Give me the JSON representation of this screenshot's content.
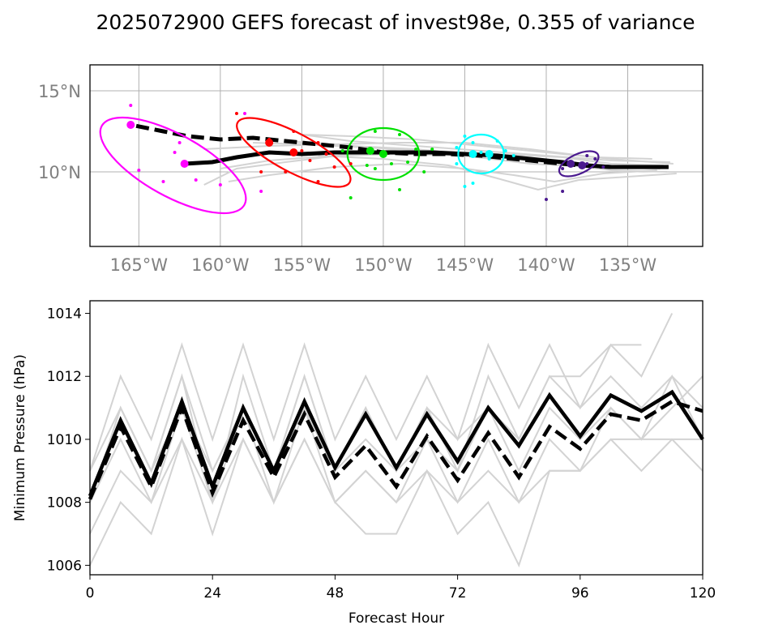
{
  "figure": {
    "title": "2025072900 GEFS forecast of invest98e, 0.355 of variance"
  },
  "colors": {
    "ensemble": "#d3d3d3",
    "mean": "#000000",
    "grid": "#b0b0b0",
    "ellipses": [
      "#ff00ff",
      "#ff0000",
      "#00e000",
      "#00ffff",
      "#4b1a8f"
    ]
  },
  "chart_data": [
    {
      "type": "scatter",
      "panel": "track-map",
      "title": "",
      "xlabel": "",
      "ylabel": "",
      "x_ticks": [
        -165,
        -160,
        -155,
        -150,
        -145,
        -140,
        -135
      ],
      "x_tick_labels": [
        "165°W",
        "160°W",
        "155°W",
        "150°W",
        "145°W",
        "140°W",
        "135°W"
      ],
      "y_ticks": [
        10,
        15
      ],
      "y_tick_labels": [
        "10°N",
        "15°N"
      ],
      "xlim": [
        -168,
        -130.4
      ],
      "ylim": [
        5.4,
        16.6
      ],
      "grid": true,
      "series": [
        {
          "style": "solid-mean",
          "points": [
            [
              -132.5,
              10.3
            ],
            [
              -134,
              10.3
            ],
            [
              -136,
              10.3
            ],
            [
              -137.5,
              10.4
            ],
            [
              -139,
              10.6
            ],
            [
              -141,
              10.8
            ],
            [
              -143,
              11.0
            ],
            [
              -145,
              11.1
            ],
            [
              -147,
              11.2
            ],
            [
              -149,
              11.2
            ],
            [
              -151,
              11.2
            ],
            [
              -153,
              11.2
            ],
            [
              -155,
              11.1
            ],
            [
              -157,
              11.2
            ],
            [
              -159,
              10.9
            ],
            [
              -160.5,
              10.6
            ],
            [
              -162.2,
              10.5
            ]
          ]
        },
        {
          "style": "dashed-mean",
          "points": [
            [
              -132.5,
              10.3
            ],
            [
              -134,
              10.3
            ],
            [
              -136,
              10.3
            ],
            [
              -138,
              10.4
            ],
            [
              -140,
              10.6
            ],
            [
              -142,
              10.8
            ],
            [
              -144,
              11.0
            ],
            [
              -146,
              11.1
            ],
            [
              -148,
              11.1
            ],
            [
              -150,
              11.2
            ],
            [
              -152,
              11.5
            ],
            [
              -154,
              11.7
            ],
            [
              -156,
              11.9
            ],
            [
              -158,
              12.1
            ],
            [
              -160,
              12.0
            ],
            [
              -162,
              12.2
            ],
            [
              -163.5,
              12.5
            ],
            [
              -165.5,
              12.9
            ]
          ]
        },
        {
          "style": "ensemble",
          "points": [
            [
              -132.6,
              10.0
            ],
            [
              -136,
              10.1
            ],
            [
              -140,
              10.6
            ],
            [
              -144,
              11.0
            ],
            [
              -148,
              11.4
            ],
            [
              -152,
              11.6
            ],
            [
              -156,
              11.9
            ]
          ]
        },
        {
          "style": "ensemble",
          "points": [
            [
              -132.4,
              10.6
            ],
            [
              -136,
              10.7
            ],
            [
              -140,
              11.0
            ],
            [
              -144,
              11.3
            ],
            [
              -148,
              11.6
            ],
            [
              -152,
              11.9
            ],
            [
              -155,
              12.3
            ]
          ]
        },
        {
          "style": "ensemble",
          "points": [
            [
              -133,
              10.2
            ],
            [
              -137,
              10.3
            ],
            [
              -141,
              10.5
            ],
            [
              -145,
              11.0
            ],
            [
              -149,
              11.1
            ],
            [
              -153,
              11.0
            ],
            [
              -157,
              10.7
            ],
            [
              -160,
              10.2
            ]
          ]
        },
        {
          "style": "ensemble",
          "points": [
            [
              -132,
              9.9
            ],
            [
              -135,
              9.7
            ],
            [
              -138,
              9.5
            ],
            [
              -140.5,
              8.9
            ],
            [
              -143,
              9.6
            ],
            [
              -146,
              10.4
            ],
            [
              -150,
              10.8
            ],
            [
              -154,
              11.0
            ]
          ]
        },
        {
          "style": "ensemble",
          "points": [
            [
              -133.5,
              10.8
            ],
            [
              -137,
              10.9
            ],
            [
              -141,
              11.4
            ],
            [
              -145,
              11.8
            ],
            [
              -149,
              11.8
            ],
            [
              -153,
              11.7
            ],
            [
              -157,
              11.6
            ],
            [
              -161,
              11.4
            ]
          ]
        },
        {
          "style": "ensemble",
          "points": [
            [
              -132.8,
              10.4
            ],
            [
              -136,
              10.5
            ],
            [
              -139,
              10.9
            ],
            [
              -143,
              11.1
            ],
            [
              -147,
              11.3
            ],
            [
              -151,
              11.5
            ],
            [
              -155,
              11.7
            ],
            [
              -158,
              11.8
            ]
          ]
        },
        {
          "style": "ensemble",
          "points": [
            [
              -133.2,
              10.1
            ],
            [
              -136.5,
              9.9
            ],
            [
              -139.5,
              9.4
            ],
            [
              -142,
              9.8
            ],
            [
              -145,
              10.2
            ],
            [
              -149,
              10.5
            ],
            [
              -153,
              10.3
            ],
            [
              -157,
              9.8
            ],
            [
              -159.5,
              9.4
            ]
          ]
        },
        {
          "style": "ensemble",
          "points": [
            [
              -132.2,
              10.5
            ],
            [
              -136,
              10.8
            ],
            [
              -140,
              11.2
            ],
            [
              -144,
              11.6
            ],
            [
              -148,
              12.0
            ],
            [
              -152,
              12.2
            ],
            [
              -155,
              12.3
            ]
          ]
        },
        {
          "style": "ensemble",
          "points": [
            [
              -133.4,
              10.3
            ],
            [
              -137,
              10.4
            ],
            [
              -141,
              10.8
            ],
            [
              -145,
              11.2
            ],
            [
              -149,
              11.4
            ],
            [
              -152,
              11.1
            ],
            [
              -156,
              10.6
            ],
            [
              -159,
              10.2
            ],
            [
              -161,
              9.2
            ]
          ]
        }
      ],
      "ellipses": [
        {
          "color_index": 0,
          "cx": -162.9,
          "cy": 10.4,
          "rx": 5.0,
          "ry": 1.9,
          "angle": 29
        },
        {
          "color_index": 1,
          "cx": -155.5,
          "cy": 11.2,
          "rx": 3.9,
          "ry": 1.2,
          "angle": 28
        },
        {
          "color_index": 2,
          "cx": -150.0,
          "cy": 11.1,
          "rx": 2.2,
          "ry": 1.6,
          "angle": 0
        },
        {
          "color_index": 3,
          "cx": -144.0,
          "cy": 11.1,
          "rx": 1.4,
          "ry": 1.2,
          "angle": 0
        },
        {
          "color_index": 4,
          "cx": -138.0,
          "cy": 10.5,
          "rx": 1.3,
          "ry": 0.6,
          "angle": -25
        }
      ],
      "members": [
        {
          "color_index": 0,
          "points": [
            [
              -165.5,
              14.1
            ],
            [
              -158.5,
              13.6
            ],
            [
              -162.5,
              11.8
            ],
            [
              -162.8,
              11.2
            ],
            [
              -165,
              10.1
            ],
            [
              -163.5,
              9.4
            ],
            [
              -161.5,
              9.5
            ],
            [
              -160,
              9.2
            ],
            [
              -157.5,
              8.8
            ]
          ]
        },
        {
          "color_index": 1,
          "points": [
            [
              -159,
              13.6
            ],
            [
              -155.5,
              12.5
            ],
            [
              -157,
              12.0
            ],
            [
              -154,
              11.8
            ],
            [
              -155,
              11.3
            ],
            [
              -153.5,
              11.1
            ],
            [
              -154.5,
              10.7
            ],
            [
              -152,
              10.5
            ],
            [
              -156,
              10.0
            ],
            [
              -157.5,
              10.0
            ],
            [
              -154,
              9.4
            ],
            [
              -153,
              10.3
            ]
          ]
        },
        {
          "color_index": 2,
          "points": [
            [
              -150.5,
              12.5
            ],
            [
              -149,
              12.3
            ],
            [
              -152.5,
              11.3
            ],
            [
              -148,
              11.4
            ],
            [
              -149.5,
              10.5
            ],
            [
              -151,
              10.4
            ],
            [
              -150.5,
              10.2
            ],
            [
              -148.5,
              10.6
            ],
            [
              -147.5,
              10.0
            ],
            [
              -149,
              8.9
            ],
            [
              -152,
              8.4
            ],
            [
              -147,
              11.4
            ]
          ]
        },
        {
          "color_index": 3,
          "points": [
            [
              -145,
              12.2
            ],
            [
              -144.5,
              11.8
            ],
            [
              -143,
              11.9
            ],
            [
              -145.5,
              11.5
            ],
            [
              -144,
              11.2
            ],
            [
              -142.5,
              11.3
            ],
            [
              -142,
              11.0
            ],
            [
              -143.5,
              10.8
            ],
            [
              -145.5,
              10.5
            ],
            [
              -144.5,
              9.3
            ],
            [
              -145,
              9.1
            ]
          ]
        },
        {
          "color_index": 4,
          "points": [
            [
              -137.5,
              11.0
            ],
            [
              -138.5,
              10.6
            ],
            [
              -137.5,
              10.5
            ],
            [
              -139,
              10.2
            ],
            [
              -136.5,
              10.3
            ],
            [
              -140,
              8.3
            ],
            [
              -139,
              8.8
            ],
            [
              -137,
              10.8
            ]
          ]
        }
      ],
      "means": [
        {
          "color_index": 0,
          "points": [
            [
              -165.5,
              12.9
            ],
            [
              -162.2,
              10.5
            ]
          ]
        },
        {
          "color_index": 1,
          "points": [
            [
              -157,
              11.8
            ],
            [
              -155.5,
              11.2
            ]
          ]
        },
        {
          "color_index": 2,
          "points": [
            [
              -150.8,
              11.3
            ],
            [
              -150,
              11.1
            ]
          ]
        },
        {
          "color_index": 3,
          "points": [
            [
              -144.5,
              11.1
            ],
            [
              -143.5,
              11.1
            ]
          ]
        },
        {
          "color_index": 4,
          "points": [
            [
              -138.5,
              10.5
            ],
            [
              -137.8,
              10.4
            ]
          ]
        }
      ]
    },
    {
      "type": "line",
      "panel": "pressure",
      "title": "",
      "xlabel": "Forecast Hour",
      "ylabel": "Minimum Pressure (hPa)",
      "xlim": [
        0,
        120
      ],
      "ylim": [
        1005.7,
        1014.4
      ],
      "x_ticks": [
        0,
        24,
        48,
        72,
        96,
        120
      ],
      "y_ticks": [
        1006,
        1008,
        1010,
        1012,
        1014
      ],
      "grid": false,
      "x": [
        0,
        6,
        12,
        18,
        24,
        30,
        36,
        42,
        48,
        54,
        60,
        66,
        72,
        78,
        84,
        90,
        96,
        102,
        108,
        114,
        120
      ],
      "mean": [
        1008.2,
        1010.6,
        1008.6,
        1011.2,
        1008.5,
        1011.0,
        1009.0,
        1011.2,
        1009.1,
        1010.8,
        1009.1,
        1010.8,
        1009.3,
        1011.0,
        1009.8,
        1011.4,
        1010.1,
        1011.4,
        1010.9,
        1011.5,
        1010.0
      ],
      "dashed_mean": [
        1008.1,
        1010.4,
        1008.5,
        1011.0,
        1008.3,
        1010.6,
        1008.8,
        1010.8,
        1008.8,
        1009.8,
        1008.5,
        1010.1,
        1008.7,
        1010.2,
        1008.8,
        1010.4,
        1009.7,
        1010.8,
        1010.6,
        1011.2,
        1010.9
      ],
      "members": [
        [
          1006.0,
          1008.0,
          1007.0,
          1010.0,
          1007.0,
          1010.0,
          1008.0,
          1010.0,
          1008.0,
          1007.0,
          1007.0,
          1009.0,
          1007.0,
          1008.0,
          1006.0,
          1009.0,
          1009.0,
          1010.0,
          1010.0,
          1010.0,
          1009.0
        ],
        [
          1007.0,
          1009.0,
          1008.0,
          1010.0,
          1008.0,
          1010.0,
          1008.0,
          1010.0,
          1008.0,
          1009.0,
          1008.0,
          1009.0,
          1008.0,
          1009.0,
          1008.0,
          1009.0,
          1009.0,
          1010.0,
          1009.0,
          1010.0,
          1010.0
        ],
        [
          1008.0,
          1011.0,
          1009.0,
          1012.0,
          1009.0,
          1011.0,
          1009.0,
          1012.0,
          1009.0,
          1011.0,
          1009.0,
          1011.0,
          1009.0,
          1012.0,
          1010.0,
          1012.0,
          1011.0,
          1012.0,
          1011.0,
          1012.0,
          1011.0
        ],
        [
          1009.0,
          1012.0,
          1010.0,
          1013.0,
          1010.0,
          1013.0,
          1010.0,
          1013.0,
          1010.0,
          1012.0,
          1010.0,
          1012.0,
          1010.0,
          1013.0,
          1011.0,
          1013.0,
          1011.0,
          1013.0,
          1012.0,
          1014.0
        ],
        [
          1008.0,
          1011.0,
          1009.0,
          1012.0,
          1008.0,
          1012.0,
          1009.0,
          1012.0,
          1009.0,
          1011.0,
          1009.0,
          1011.0,
          1010.0,
          1011.0,
          1010.0,
          1012.0,
          1012.0,
          1013.0,
          1013.0
        ],
        [
          1008.0,
          1010.0,
          1008.0,
          1011.0,
          1009.0,
          1011.0,
          1009.0,
          1011.0,
          1009.0,
          1010.0,
          1009.0,
          1010.0,
          1009.0,
          1011.0,
          1009.0,
          1011.0,
          1010.0,
          1011.0,
          1010.0,
          1011.0,
          1012.0
        ],
        [
          1009.0,
          1011.0,
          1009.0,
          1011.0,
          1008.0,
          1011.0,
          1008.0,
          1011.0,
          1008.0,
          1009.0,
          1008.0,
          1010.0,
          1008.0,
          1010.0,
          1008.0,
          1010.0,
          1009.0,
          1011.0,
          1010.0,
          1012.0,
          1010.0
        ]
      ]
    }
  ]
}
